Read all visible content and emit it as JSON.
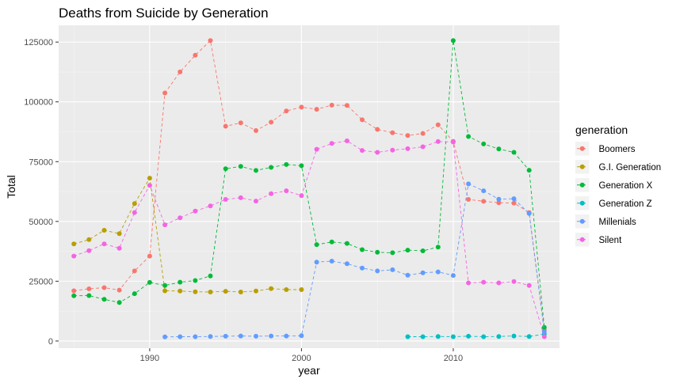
{
  "chart_data": {
    "type": "line",
    "title": "Deaths from Suicide by Generation",
    "xlabel": "year",
    "ylabel": "Total",
    "xlim": [
      1984,
      2017
    ],
    "ylim": [
      -3000,
      132000
    ],
    "x_ticks": [
      1990,
      2000,
      2010
    ],
    "x_tick_labels": [
      "1990",
      "2000",
      "2010"
    ],
    "y_ticks": [
      0,
      25000,
      50000,
      75000,
      100000,
      125000
    ],
    "y_tick_labels": [
      "0",
      "25000",
      "50000",
      "75000",
      "100000",
      "125000"
    ],
    "grid": true,
    "legend": {
      "title": "generation",
      "position": "right"
    },
    "series": [
      {
        "name": "Boomers",
        "color": "#F8766D",
        "points": [
          [
            1985,
            21000
          ],
          [
            1986,
            21800
          ],
          [
            1987,
            22300
          ],
          [
            1988,
            21300
          ],
          [
            1989,
            29300
          ],
          [
            1990,
            35500
          ],
          [
            1991,
            103700
          ],
          [
            1992,
            112500
          ],
          [
            1993,
            119500
          ],
          [
            1994,
            125600
          ],
          [
            1995,
            89800
          ],
          [
            1996,
            91200
          ],
          [
            1997,
            88000
          ],
          [
            1998,
            91500
          ],
          [
            1999,
            96200
          ],
          [
            2000,
            97800
          ],
          [
            2001,
            96900
          ],
          [
            2002,
            98600
          ],
          [
            2003,
            98500
          ],
          [
            2004,
            92500
          ],
          [
            2005,
            88500
          ],
          [
            2006,
            87100
          ],
          [
            2007,
            85900
          ],
          [
            2008,
            86800
          ],
          [
            2009,
            90400
          ],
          [
            2010,
            83500
          ],
          [
            2011,
            59200
          ],
          [
            2012,
            58400
          ],
          [
            2013,
            57800
          ],
          [
            2014,
            57700
          ],
          [
            2015,
            53700
          ],
          [
            2016,
            4600
          ]
        ]
      },
      {
        "name": "G.I. Generation",
        "color": "#B79F00",
        "points": [
          [
            1985,
            40600
          ],
          [
            1986,
            42400
          ],
          [
            1987,
            46300
          ],
          [
            1988,
            44900
          ],
          [
            1989,
            57500
          ],
          [
            1990,
            68100
          ],
          [
            1991,
            21000
          ],
          [
            1992,
            20900
          ],
          [
            1993,
            20600
          ],
          [
            1994,
            20500
          ],
          [
            1995,
            20800
          ],
          [
            1996,
            20500
          ],
          [
            1997,
            20900
          ],
          [
            1998,
            21900
          ],
          [
            1999,
            21500
          ],
          [
            2000,
            21500
          ]
        ]
      },
      {
        "name": "Generation X",
        "color": "#00BA38",
        "points": [
          [
            1985,
            18900
          ],
          [
            1986,
            19000
          ],
          [
            1987,
            17400
          ],
          [
            1988,
            16100
          ],
          [
            1989,
            19800
          ],
          [
            1990,
            24500
          ],
          [
            1991,
            23200
          ],
          [
            1992,
            24600
          ],
          [
            1993,
            25300
          ],
          [
            1994,
            27200
          ],
          [
            1995,
            72000
          ],
          [
            1996,
            73000
          ],
          [
            1997,
            71300
          ],
          [
            1998,
            72600
          ],
          [
            1999,
            73800
          ],
          [
            2000,
            73300
          ],
          [
            2001,
            40300
          ],
          [
            2002,
            41400
          ],
          [
            2003,
            40800
          ],
          [
            2004,
            38200
          ],
          [
            2005,
            37100
          ],
          [
            2006,
            36900
          ],
          [
            2007,
            38000
          ],
          [
            2008,
            37700
          ],
          [
            2009,
            39300
          ],
          [
            2010,
            125600
          ],
          [
            2011,
            85500
          ],
          [
            2012,
            82400
          ],
          [
            2013,
            80300
          ],
          [
            2014,
            78900
          ],
          [
            2015,
            71400
          ],
          [
            2016,
            5700
          ]
        ]
      },
      {
        "name": "Generation Z",
        "color": "#00BFC4",
        "points": [
          [
            2007,
            1800
          ],
          [
            2008,
            1800
          ],
          [
            2009,
            1900
          ],
          [
            2010,
            1800
          ],
          [
            2011,
            2000
          ],
          [
            2012,
            1800
          ],
          [
            2013,
            1900
          ],
          [
            2014,
            2100
          ],
          [
            2015,
            1900
          ],
          [
            2016,
            2900
          ]
        ]
      },
      {
        "name": "Millenials",
        "color": "#619CFF",
        "points": [
          [
            1991,
            1700
          ],
          [
            1992,
            1800
          ],
          [
            1993,
            1800
          ],
          [
            1994,
            1900
          ],
          [
            1995,
            2000
          ],
          [
            1996,
            2100
          ],
          [
            1997,
            2000
          ],
          [
            1998,
            2100
          ],
          [
            1999,
            2100
          ],
          [
            2000,
            2200
          ],
          [
            2001,
            33000
          ],
          [
            2002,
            33400
          ],
          [
            2003,
            32300
          ],
          [
            2004,
            30500
          ],
          [
            2005,
            29300
          ],
          [
            2006,
            29800
          ],
          [
            2007,
            27500
          ],
          [
            2008,
            28500
          ],
          [
            2009,
            28900
          ],
          [
            2010,
            27400
          ],
          [
            2011,
            65700
          ],
          [
            2012,
            62800
          ],
          [
            2013,
            59300
          ],
          [
            2014,
            59500
          ],
          [
            2015,
            53300
          ],
          [
            2016,
            3900
          ]
        ]
      },
      {
        "name": "Silent",
        "color": "#F564E3",
        "points": [
          [
            1985,
            35500
          ],
          [
            1986,
            37800
          ],
          [
            1987,
            40600
          ],
          [
            1988,
            38800
          ],
          [
            1989,
            53700
          ],
          [
            1990,
            65100
          ],
          [
            1991,
            48600
          ],
          [
            1992,
            51500
          ],
          [
            1993,
            54300
          ],
          [
            1994,
            56500
          ],
          [
            1995,
            59200
          ],
          [
            1996,
            59900
          ],
          [
            1997,
            58500
          ],
          [
            1998,
            61600
          ],
          [
            1999,
            62800
          ],
          [
            2000,
            60800
          ],
          [
            2001,
            80200
          ],
          [
            2002,
            82600
          ],
          [
            2003,
            83700
          ],
          [
            2004,
            79700
          ],
          [
            2005,
            78900
          ],
          [
            2006,
            79800
          ],
          [
            2007,
            80400
          ],
          [
            2008,
            81200
          ],
          [
            2009,
            83400
          ],
          [
            2010,
            83200
          ],
          [
            2011,
            24300
          ],
          [
            2012,
            24600
          ],
          [
            2013,
            24300
          ],
          [
            2014,
            24900
          ],
          [
            2015,
            23200
          ],
          [
            2016,
            1800
          ]
        ]
      }
    ]
  }
}
